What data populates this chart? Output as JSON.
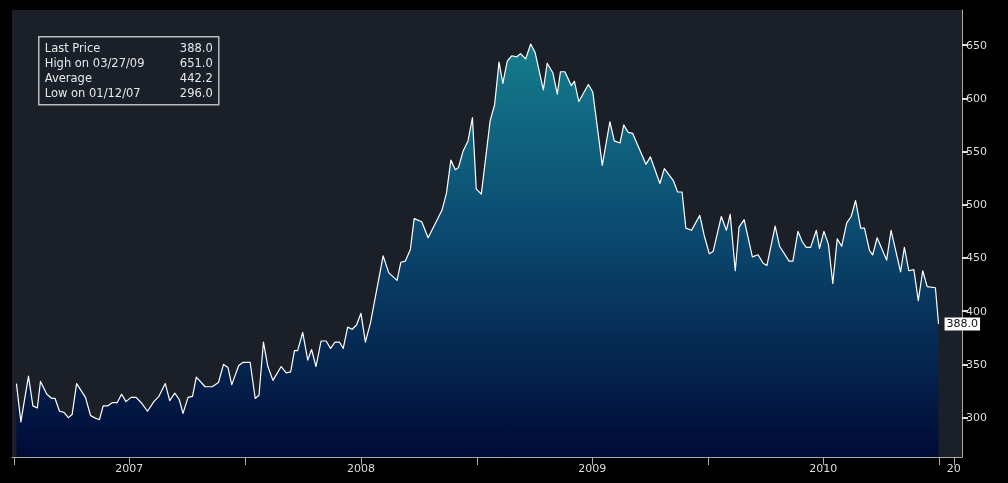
{
  "chart_data": {
    "type": "area",
    "x": [
      "2007-01-05",
      "2007-01-12",
      "2007-01-24",
      "2007-01-31",
      "2007-02-07",
      "2007-02-12",
      "2007-02-22",
      "2007-03-02",
      "2007-03-07",
      "2007-03-14",
      "2007-03-21",
      "2007-03-28",
      "2007-04-03",
      "2007-04-10",
      "2007-04-24",
      "2007-05-02",
      "2007-05-08",
      "2007-05-16",
      "2007-05-22",
      "2007-05-29",
      "2007-06-05",
      "2007-06-13",
      "2007-06-20",
      "2007-06-27",
      "2007-07-05",
      "2007-07-13",
      "2007-07-21",
      "2007-07-31",
      "2007-08-10",
      "2007-08-18",
      "2007-08-28",
      "2007-09-04",
      "2007-09-12",
      "2007-09-19",
      "2007-09-25",
      "2007-10-03",
      "2007-10-10",
      "2007-10-16",
      "2007-10-30",
      "2007-11-10",
      "2007-11-20",
      "2007-11-28",
      "2007-12-05",
      "2007-12-11",
      "2007-12-22",
      "2007-12-29",
      "2008-01-09",
      "2008-01-17",
      "2008-01-23",
      "2008-01-30",
      "2008-02-06",
      "2008-02-14",
      "2008-02-27",
      "2008-03-06",
      "2008-03-13",
      "2008-03-19",
      "2008-03-24",
      "2008-04-01",
      "2008-04-09",
      "2008-04-15",
      "2008-04-22",
      "2008-04-30",
      "2008-05-08",
      "2008-05-15",
      "2008-05-22",
      "2008-05-29",
      "2008-06-04",
      "2008-06-11",
      "2008-06-18",
      "2008-06-25",
      "2008-07-02",
      "2008-07-09",
      "2008-07-17",
      "2008-08-06",
      "2008-08-15",
      "2008-08-28",
      "2008-09-03",
      "2008-09-10",
      "2008-09-18",
      "2008-09-24",
      "2008-10-06",
      "2008-10-16",
      "2008-10-27",
      "2008-11-07",
      "2008-11-14",
      "2008-11-21",
      "2008-11-28",
      "2008-12-03",
      "2008-12-10",
      "2008-12-18",
      "2008-12-25",
      "2008-12-31",
      "2009-01-08",
      "2009-01-22",
      "2009-01-29",
      "2009-02-05",
      "2009-02-11",
      "2009-02-18",
      "2009-02-25",
      "2009-03-05",
      "2009-03-11",
      "2009-03-19",
      "2009-03-27",
      "2009-04-03",
      "2009-04-16",
      "2009-04-22",
      "2009-05-01",
      "2009-05-08",
      "2009-05-13",
      "2009-05-20",
      "2009-05-30",
      "2009-06-04",
      "2009-06-11",
      "2009-06-26",
      "2009-07-03",
      "2009-07-18",
      "2009-07-30",
      "2009-08-06",
      "2009-08-15",
      "2009-08-21",
      "2009-08-28",
      "2009-09-04",
      "2009-09-25",
      "2009-10-02",
      "2009-10-17",
      "2009-10-24",
      "2009-11-07",
      "2009-11-14",
      "2009-11-21",
      "2009-11-27",
      "2009-12-06",
      "2009-12-19",
      "2009-12-26",
      "2010-01-03",
      "2010-01-09",
      "2010-01-22",
      "2010-01-30",
      "2010-02-05",
      "2010-02-13",
      "2010-02-19",
      "2010-02-27",
      "2010-03-12",
      "2010-03-21",
      "2010-03-29",
      "2010-04-04",
      "2010-04-17",
      "2010-04-24",
      "2010-05-09",
      "2010-05-15",
      "2010-05-23",
      "2010-05-30",
      "2010-06-05",
      "2010-06-12",
      "2010-06-21",
      "2010-06-26",
      "2010-07-03",
      "2010-07-10",
      "2010-07-17",
      "2010-07-24",
      "2010-07-31",
      "2010-08-08",
      "2010-08-15",
      "2010-08-22",
      "2010-08-30",
      "2010-09-05",
      "2010-09-13",
      "2010-09-18",
      "2010-09-25",
      "2010-10-10",
      "2010-10-17",
      "2010-11-01",
      "2010-11-07",
      "2010-11-14",
      "2010-11-22",
      "2010-11-29",
      "2010-12-06",
      "2010-12-13",
      "2010-12-26",
      "2010-12-31"
    ],
    "series": [
      {
        "color": "#ffffff",
        "values": [
          332,
          296,
          339,
          311,
          309,
          334,
          322,
          318,
          318,
          306,
          305,
          300,
          303,
          332,
          319,
          302,
          300,
          298,
          311,
          311,
          314,
          314,
          322,
          315,
          319,
          319,
          314,
          306,
          315,
          320,
          332,
          316,
          323,
          317,
          304,
          319,
          320,
          338,
          329,
          329,
          333,
          350,
          347,
          331,
          349,
          352,
          352,
          318,
          321,
          371,
          348,
          335,
          348,
          342,
          343,
          363,
          363,
          380,
          354,
          364,
          348,
          372,
          372,
          365,
          371,
          371,
          365,
          385,
          383,
          387,
          398,
          371,
          389,
          452,
          436,
          429,
          446,
          447,
          458,
          487,
          484,
          469,
          482,
          495,
          511,
          542,
          533,
          535,
          550,
          560,
          582,
          515,
          510,
          579,
          594,
          634,
          614,
          635,
          640,
          639,
          642,
          637,
          651,
          643,
          608,
          633,
          624,
          604,
          625,
          625,
          612,
          616,
          597,
          613,
          606,
          537,
          578,
          560,
          558,
          575,
          568,
          567,
          538,
          545,
          520,
          534,
          523,
          512,
          512,
          478,
          476,
          490,
          471,
          454,
          456,
          489,
          476,
          491,
          438,
          479,
          486,
          451,
          453,
          445,
          443,
          480,
          461,
          447,
          447,
          475,
          465,
          460,
          460,
          476,
          459,
          475,
          463,
          426,
          468,
          461,
          483,
          489,
          504,
          478,
          478,
          457,
          453,
          469,
          448,
          476,
          437,
          460,
          438,
          439,
          410,
          438,
          423,
          422,
          388
        ],
        "value_labels": [
          null,
          null,
          null,
          null,
          null,
          null,
          null,
          null,
          null,
          null,
          null,
          null,
          null,
          null,
          null,
          null,
          null,
          null,
          null,
          null,
          null,
          null,
          null,
          null,
          null,
          null,
          null,
          null,
          null,
          null,
          null,
          null,
          null,
          null,
          null,
          null,
          null,
          null,
          null,
          null,
          null,
          null,
          null,
          null,
          null,
          null,
          null,
          null,
          null,
          null,
          null,
          null,
          null,
          null,
          null,
          null,
          null,
          null,
          null,
          null,
          null,
          null,
          null,
          null,
          null,
          null,
          null,
          null,
          null,
          null,
          null,
          null,
          null,
          null,
          null,
          null,
          null,
          null,
          null,
          null,
          null,
          null,
          null,
          null,
          null,
          null,
          null,
          null,
          null,
          null,
          null,
          null,
          null,
          null,
          null,
          null,
          null,
          null,
          null,
          null,
          null,
          null,
          null,
          null,
          null,
          null,
          null,
          null,
          null,
          null,
          null,
          null,
          null,
          null,
          null,
          null,
          null,
          null,
          null,
          null,
          null,
          null,
          null,
          null,
          null,
          null,
          null,
          null,
          null,
          null,
          null,
          null,
          null,
          null,
          null,
          null,
          null,
          null,
          null,
          null,
          null,
          null,
          null,
          null,
          null,
          null,
          null,
          null,
          null,
          null,
          null,
          null,
          null,
          null,
          null,
          null,
          null,
          null,
          null,
          null,
          null,
          null,
          null,
          null,
          null,
          null,
          null,
          null,
          null,
          null,
          null,
          null,
          null,
          null,
          null,
          null,
          null,
          null,
          "388.0"
        ]
      }
    ],
    "xlim": [
      "2006-12-29",
      "2011-02-06"
    ],
    "xticks": [
      {
        "value": "2007-01-01",
        "label": null
      },
      {
        "value": "2007-07-02",
        "label": "2007"
      },
      {
        "value": "2008-01-01",
        "label": null
      },
      {
        "value": "2008-07-02",
        "label": "2008"
      },
      {
        "value": "2009-01-01",
        "label": null
      },
      {
        "value": "2009-07-02",
        "label": "2009"
      },
      {
        "value": "2010-01-01",
        "label": null
      },
      {
        "value": "2010-07-02",
        "label": "2010"
      },
      {
        "value": "2011-01-01",
        "label": null
      },
      {
        "value": "2011-01-24",
        "label": "20"
      }
    ],
    "ylim": [
      263,
      683
    ],
    "yticks": [
      300,
      350,
      400,
      450,
      500,
      550,
      600,
      650
    ],
    "annotations": [
      "Last Price 388.0",
      "High on 03/27/09 651.0",
      "Average 442.2",
      "Low on 01/12/07 296.0"
    ]
  }
}
